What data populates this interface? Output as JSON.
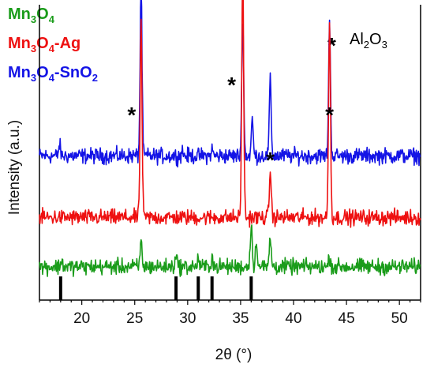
{
  "chart_data": {
    "type": "line",
    "xlabel": "2θ (°)",
    "ylabel": "Intensity (a.u.)",
    "xlim": [
      16,
      52
    ],
    "x_ticks": [
      20,
      25,
      30,
      35,
      40,
      45,
      50
    ],
    "y_ticks": "none",
    "legend_placement": "top-left",
    "legend": [
      {
        "base": "Mn",
        "s1": "3",
        "mid": "O",
        "s2": "4",
        "tail": "",
        "s3": "",
        "end": "",
        "color": "#1a9c1a"
      },
      {
        "base": "Mn",
        "s1": "3",
        "mid": "O",
        "s2": "4",
        "tail": "-Ag",
        "s3": "",
        "end": "",
        "color": "#ee1111"
      },
      {
        "base": "Mn",
        "s1": "3",
        "mid": "O",
        "s2": "4",
        "tail": "-SnO",
        "s3": "2",
        "end": "",
        "color": "#1414e6"
      }
    ],
    "annotation": {
      "star": "*",
      "base": "Al",
      "s1": "2",
      "mid": "O",
      "s2": "3"
    },
    "star_marks": [
      {
        "x": 25.6,
        "label": "*"
      },
      {
        "x": 35.2,
        "label": "*"
      },
      {
        "x": 37.8,
        "label": "*"
      },
      {
        "x": 43.4,
        "label": "*"
      }
    ],
    "series": [
      {
        "color": "#1414e6",
        "baseline": 1.22,
        "peaks": [
          [
            17.9,
            0.1
          ],
          [
            25.6,
            1.65
          ],
          [
            29.5,
            0.05
          ],
          [
            32.3,
            0.06
          ],
          [
            35.2,
            1.35
          ],
          [
            36.1,
            0.35
          ],
          [
            37.8,
            0.72
          ],
          [
            43.4,
            1.27
          ]
        ]
      },
      {
        "color": "#ee1111",
        "baseline": 0.62,
        "peaks": [
          [
            25.6,
            1.9
          ],
          [
            35.2,
            2.45
          ],
          [
            37.8,
            0.45
          ],
          [
            43.4,
            1.9
          ]
        ]
      },
      {
        "color": "#1a9c1a",
        "baseline": 0.14,
        "peaks": [
          [
            18.1,
            0.06
          ],
          [
            25.6,
            0.24
          ],
          [
            28.9,
            0.12
          ],
          [
            31.0,
            0.08
          ],
          [
            32.3,
            0.1
          ],
          [
            36.0,
            0.42
          ],
          [
            36.5,
            0.25
          ],
          [
            37.8,
            0.28
          ],
          [
            43.4,
            0.1
          ]
        ]
      }
    ],
    "reference_lines": [
      18.0,
      28.9,
      31.0,
      32.3,
      36.0
    ]
  }
}
